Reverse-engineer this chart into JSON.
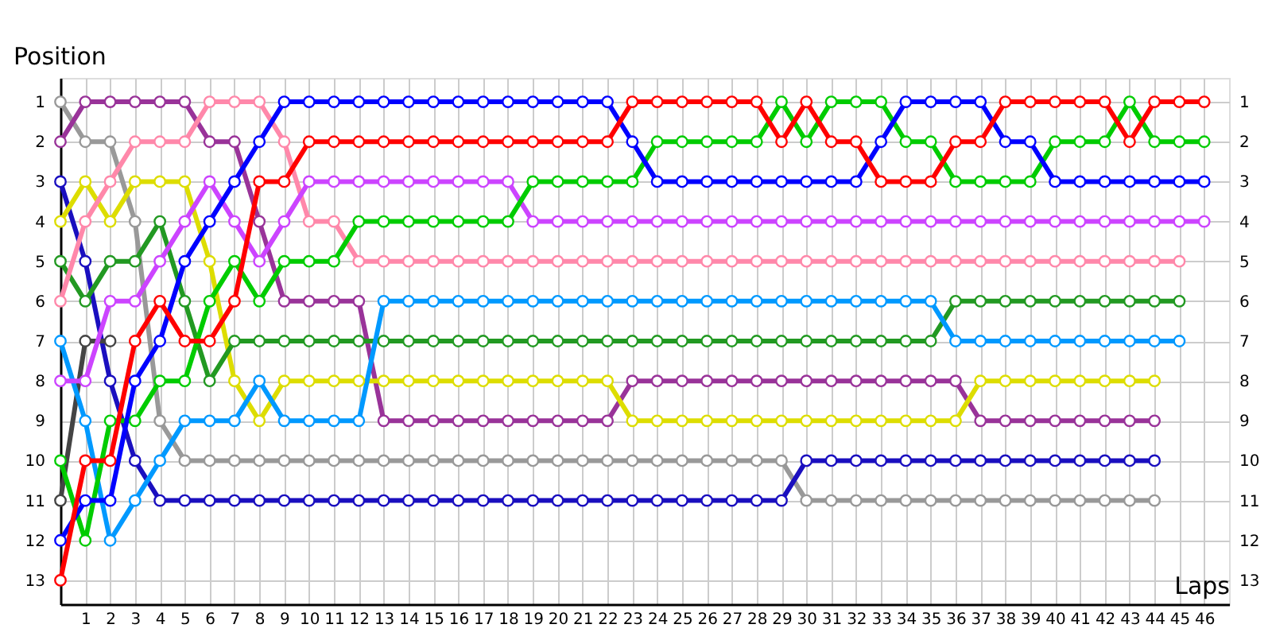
{
  "chart_data": {
    "type": "line",
    "xlabel": "Laps",
    "ylabel": "Position",
    "x": [
      0,
      1,
      2,
      3,
      4,
      5,
      6,
      7,
      8,
      9,
      10,
      11,
      12,
      13,
      14,
      15,
      16,
      17,
      18,
      19,
      20,
      21,
      22,
      23,
      24,
      25,
      26,
      27,
      28,
      29,
      30,
      31,
      32,
      33,
      34,
      35,
      36,
      37,
      38,
      39,
      40,
      41,
      42,
      43,
      44,
      45,
      46
    ],
    "xlim": [
      0,
      47
    ],
    "xticks": [
      1,
      2,
      3,
      4,
      5,
      6,
      7,
      8,
      9,
      10,
      11,
      12,
      13,
      14,
      15,
      16,
      17,
      18,
      19,
      20,
      21,
      22,
      23,
      24,
      25,
      26,
      27,
      28,
      29,
      30,
      31,
      32,
      33,
      34,
      35,
      36,
      37,
      38,
      39,
      40,
      41,
      42,
      43,
      44,
      45,
      46
    ],
    "ylim": [
      13.6,
      0.4
    ],
    "yticks": [
      1,
      2,
      3,
      4,
      5,
      6,
      7,
      8,
      9,
      10,
      11,
      12,
      13
    ],
    "y2lim": [
      13.6,
      0.4
    ],
    "y2ticks": [
      1,
      2,
      3,
      4,
      5,
      6,
      7,
      8,
      9,
      10,
      11,
      12,
      13
    ],
    "grid": true,
    "marker": "circle",
    "line_style": "solid",
    "series": [
      {
        "color": "#999999",
        "values": [
          1,
          2,
          2,
          4,
          9,
          10,
          10,
          10,
          10,
          10,
          10,
          10,
          10,
          10,
          10,
          10,
          10,
          10,
          10,
          10,
          10,
          10,
          10,
          10,
          10,
          10,
          10,
          10,
          10,
          10,
          11,
          11,
          11,
          11,
          11,
          11,
          11,
          11,
          11,
          11,
          11,
          11,
          11,
          11,
          11,
          null,
          null
        ]
      },
      {
        "color": "#1a0fbf",
        "values": [
          3,
          5,
          8,
          10,
          11,
          11,
          11,
          11,
          11,
          11,
          11,
          11,
          11,
          11,
          11,
          11,
          11,
          11,
          11,
          11,
          11,
          11,
          11,
          11,
          11,
          11,
          11,
          11,
          11,
          11,
          10,
          10,
          10,
          10,
          10,
          10,
          10,
          10,
          10,
          10,
          10,
          10,
          10,
          10,
          10,
          null,
          null
        ]
      },
      {
        "color": "#444444",
        "values": [
          11,
          7,
          7,
          null,
          null,
          null,
          null,
          null,
          null,
          null,
          null,
          null,
          null,
          null,
          null,
          null,
          null,
          null,
          null,
          null,
          null,
          null,
          null,
          null,
          null,
          null,
          null,
          null,
          null,
          null,
          null,
          null,
          null,
          null,
          null,
          null,
          null,
          null,
          null,
          null,
          null,
          null,
          null,
          null,
          null,
          null,
          null
        ]
      },
      {
        "color": "#993399",
        "values": [
          2,
          1,
          1,
          1,
          1,
          1,
          2,
          2,
          4,
          6,
          6,
          6,
          6,
          9,
          9,
          9,
          9,
          9,
          9,
          9,
          9,
          9,
          9,
          8,
          8,
          8,
          8,
          8,
          8,
          8,
          8,
          8,
          8,
          8,
          8,
          8,
          8,
          9,
          9,
          9,
          9,
          9,
          9,
          9,
          9,
          null,
          null
        ]
      },
      {
        "color": "#dddd00",
        "values": [
          4,
          3,
          4,
          3,
          3,
          3,
          5,
          8,
          9,
          8,
          8,
          8,
          8,
          8,
          8,
          8,
          8,
          8,
          8,
          8,
          8,
          8,
          8,
          9,
          9,
          9,
          9,
          9,
          9,
          9,
          9,
          9,
          9,
          9,
          9,
          9,
          9,
          8,
          8,
          8,
          8,
          8,
          8,
          8,
          8,
          null,
          null
        ]
      },
      {
        "color": "#229922",
        "values": [
          5,
          6,
          5,
          5,
          4,
          6,
          8,
          7,
          7,
          7,
          7,
          7,
          7,
          7,
          7,
          7,
          7,
          7,
          7,
          7,
          7,
          7,
          7,
          7,
          7,
          7,
          7,
          7,
          7,
          7,
          7,
          7,
          7,
          7,
          7,
          7,
          6,
          6,
          6,
          6,
          6,
          6,
          6,
          6,
          6,
          6,
          null
        ]
      },
      {
        "color": "#0099ff",
        "values": [
          7,
          9,
          12,
          11,
          10,
          9,
          9,
          9,
          8,
          9,
          9,
          9,
          9,
          6,
          6,
          6,
          6,
          6,
          6,
          6,
          6,
          6,
          6,
          6,
          6,
          6,
          6,
          6,
          6,
          6,
          6,
          6,
          6,
          6,
          6,
          6,
          7,
          7,
          7,
          7,
          7,
          7,
          7,
          7,
          7,
          7,
          null
        ]
      },
      {
        "color": "#ff88aa",
        "values": [
          6,
          4,
          3,
          2,
          2,
          2,
          1,
          1,
          1,
          2,
          4,
          4,
          5,
          5,
          5,
          5,
          5,
          5,
          5,
          5,
          5,
          5,
          5,
          5,
          5,
          5,
          5,
          5,
          5,
          5,
          5,
          5,
          5,
          5,
          5,
          5,
          5,
          5,
          5,
          5,
          5,
          5,
          5,
          5,
          5,
          5,
          null
        ]
      },
      {
        "color": "#cc44ff",
        "values": [
          8,
          8,
          6,
          6,
          5,
          4,
          3,
          4,
          5,
          4,
          3,
          3,
          3,
          3,
          3,
          3,
          3,
          3,
          3,
          4,
          4,
          4,
          4,
          4,
          4,
          4,
          4,
          4,
          4,
          4,
          4,
          4,
          4,
          4,
          4,
          4,
          4,
          4,
          4,
          4,
          4,
          4,
          4,
          4,
          4,
          4,
          4
        ]
      },
      {
        "color": "#00cc00",
        "values": [
          10,
          12,
          9,
          9,
          8,
          8,
          6,
          5,
          6,
          5,
          5,
          5,
          4,
          4,
          4,
          4,
          4,
          4,
          4,
          3,
          3,
          3,
          3,
          3,
          2,
          2,
          2,
          2,
          2,
          1,
          2,
          1,
          1,
          1,
          2,
          2,
          3,
          3,
          3,
          3,
          2,
          2,
          2,
          1,
          2,
          2,
          2
        ]
      },
      {
        "color": "#0000ff",
        "values": [
          12,
          11,
          11,
          8,
          7,
          5,
          4,
          3,
          2,
          1,
          1,
          1,
          1,
          1,
          1,
          1,
          1,
          1,
          1,
          1,
          1,
          1,
          1,
          2,
          3,
          3,
          3,
          3,
          3,
          3,
          3,
          3,
          3,
          2,
          1,
          1,
          1,
          1,
          2,
          2,
          3,
          3,
          3,
          3,
          3,
          3,
          3
        ]
      },
      {
        "color": "#ff0000",
        "values": [
          13,
          10,
          10,
          7,
          6,
          7,
          7,
          6,
          3,
          3,
          2,
          2,
          2,
          2,
          2,
          2,
          2,
          2,
          2,
          2,
          2,
          2,
          2,
          1,
          1,
          1,
          1,
          1,
          1,
          2,
          1,
          2,
          2,
          3,
          3,
          3,
          2,
          2,
          1,
          1,
          1,
          1,
          1,
          2,
          1,
          1,
          1
        ]
      }
    ]
  }
}
